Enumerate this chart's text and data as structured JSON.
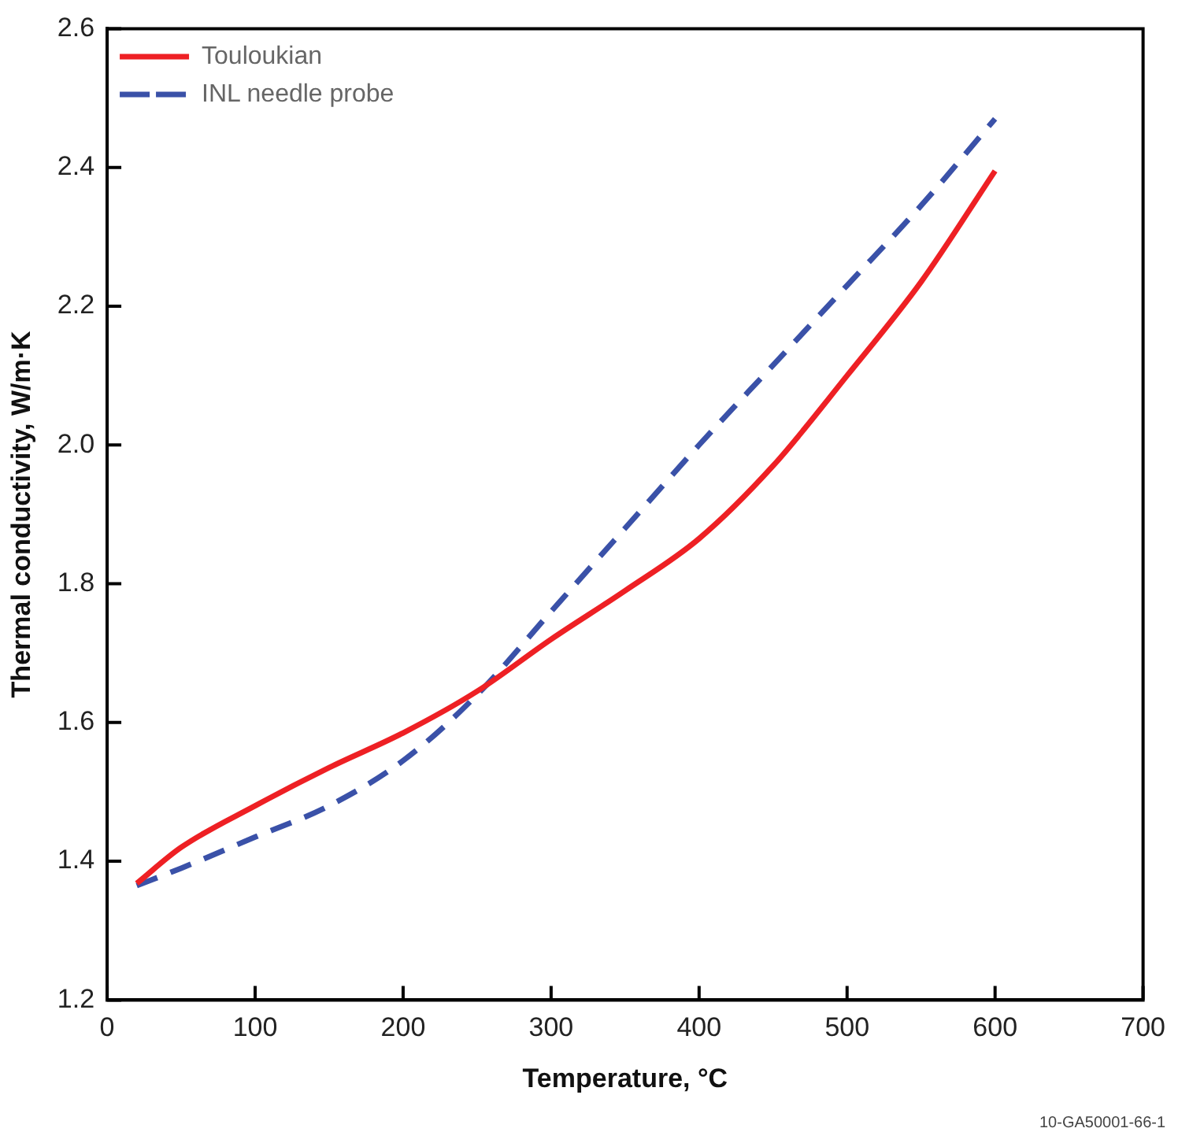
{
  "chart_data": {
    "type": "line",
    "xlabel": "Temperature, °C",
    "ylabel": "Thermal conductivity, W/m·K",
    "xlim": [
      0,
      700
    ],
    "xticks": [
      0,
      100,
      200,
      300,
      400,
      500,
      600,
      700
    ],
    "ylim": [
      1.2,
      2.6
    ],
    "yticks": [
      1.2,
      1.4,
      1.6,
      1.8,
      {
        "value": 2,
        "label": "2.0"
      },
      2.2,
      2.4,
      2.6
    ],
    "grid": false,
    "legend": "top left",
    "marker": "none",
    "series": [
      {
        "name": "Touloukian",
        "color": "#ee2024",
        "line_style": "solid",
        "x": [
          20,
          50,
          100,
          150,
          200,
          250,
          300,
          350,
          400,
          450,
          500,
          550,
          600
        ],
        "values": [
          1.368,
          1.42,
          1.48,
          1.535,
          1.585,
          1.645,
          1.72,
          1.79,
          1.865,
          1.97,
          2.1,
          2.235,
          2.395
        ]
      },
      {
        "name": "INL needle probe",
        "color": "#3a51a8",
        "line_style": "dashed",
        "x": [
          20,
          50,
          100,
          150,
          200,
          250,
          300,
          350,
          400,
          450,
          500,
          550,
          600
        ],
        "values": [
          1.365,
          1.39,
          1.435,
          1.48,
          1.545,
          1.64,
          1.76,
          1.88,
          2.0,
          2.115,
          2.23,
          2.345,
          2.47
        ]
      }
    ],
    "annotations": [
      "10-GA50001-66-1"
    ]
  }
}
